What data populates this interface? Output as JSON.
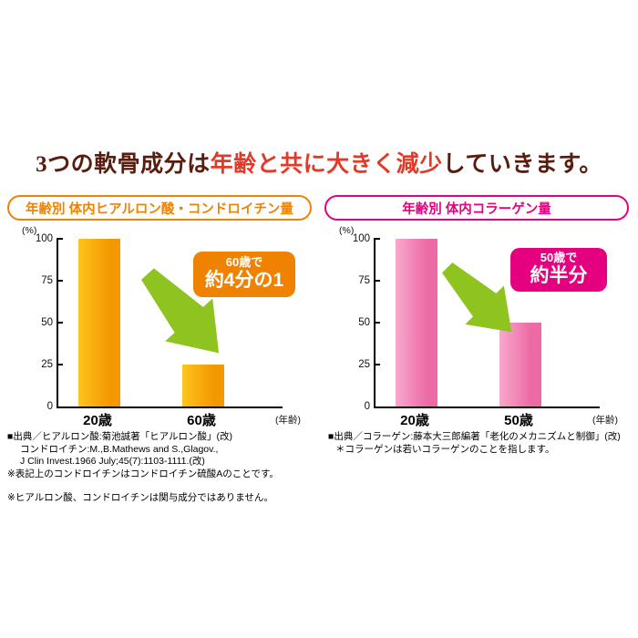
{
  "title": {
    "prefix": "3つの軟骨成分は",
    "highlight": "年齢と共に大きく減少",
    "suffix": "していきます。"
  },
  "theme": {
    "title_color": "#5a1c0e",
    "highlight_color": "#e23a28",
    "arrow_color": "#8fc31f",
    "axis_color": "#000000",
    "background": "#ffffff"
  },
  "chart_data": [
    {
      "type": "bar",
      "title": "年齢別 体内ヒアルロン酸・コンドロイチン量",
      "categories": [
        "20歳",
        "60歳"
      ],
      "values": [
        100,
        25
      ],
      "xlabel": "(年齢)",
      "ylabel": "(%)",
      "yticks": [
        0,
        25,
        50,
        75,
        100
      ],
      "ylim": [
        0,
        100
      ],
      "grid": false,
      "legend": "none",
      "annotation": {
        "line1": "60歳で",
        "line2": "約4分の1"
      },
      "accent_color": "#ef8200",
      "bar_color_light": "#ffc41e",
      "bar_color": "#f39800"
    },
    {
      "type": "bar",
      "title": "年齢別 体内コラーゲン量",
      "categories": [
        "20歳",
        "50歳"
      ],
      "values": [
        100,
        50
      ],
      "xlabel": "(年齢)",
      "ylabel": "(%)",
      "yticks": [
        0,
        25,
        50,
        75,
        100
      ],
      "ylim": [
        0,
        100
      ],
      "grid": false,
      "legend": "none",
      "annotation": {
        "line1": "50歳で",
        "line2": "約半分"
      },
      "accent_color": "#e4007f",
      "bar_color_light": "#f9a8cd",
      "bar_color": "#ec6ba5"
    }
  ],
  "footnotes": {
    "left": {
      "lines": [
        "■出典／ヒアルロン酸:菊池誠著「ヒアルロン酸」(改)",
        "コンドロイチン:M.,B.Mathews and S.,Glagov.,",
        "J Clin Invest.1966 July;45(7):1103-1111.(改)",
        "※表記上のコンドロイチンはコンドロイチン硫酸Aのことです。"
      ],
      "note": "※ヒアルロン酸、コンドロイチンは関与成分ではありません。"
    },
    "right": {
      "lines": [
        "■出典／コラーゲン:藤本大三郎編著「老化のメカニズムと制御」(改)",
        "＊コラーゲンは若いコラーゲンのことを指します。"
      ]
    }
  }
}
